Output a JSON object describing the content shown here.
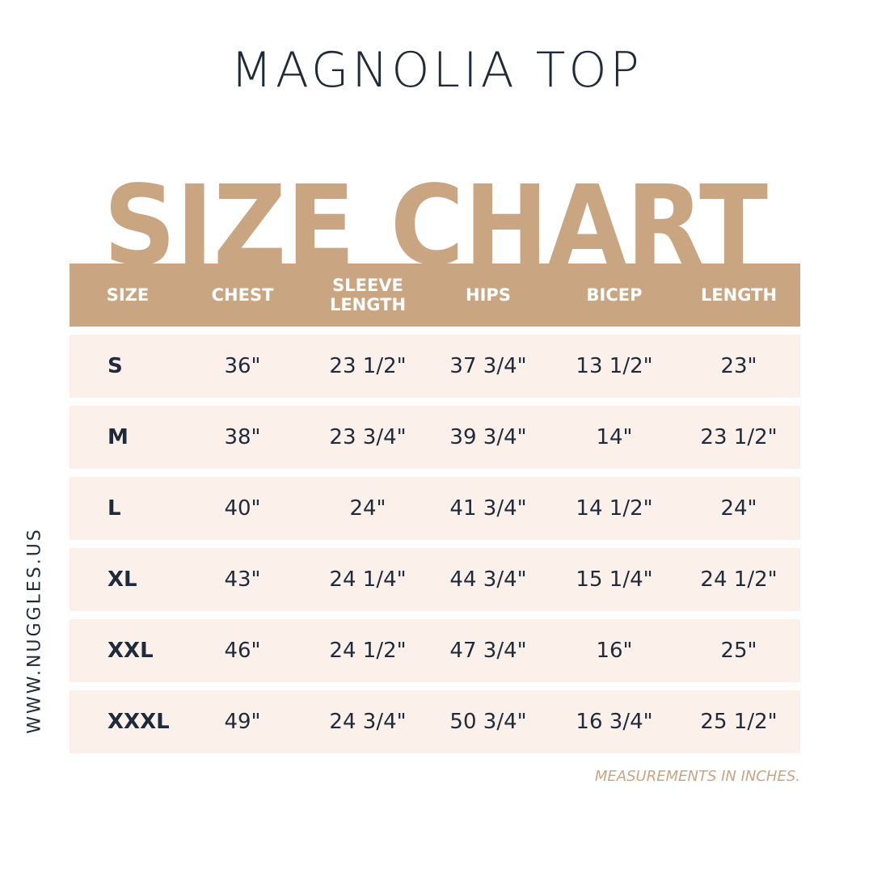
{
  "header": {
    "title": "MAGNOLIA TOP",
    "heading": "SIZE CHART"
  },
  "side_text": "WWW.NUGGLES.US",
  "table": {
    "columns": [
      "SIZE",
      "CHEST",
      "SLEEVE LENGTH",
      "HIPS",
      "BICEP",
      "LENGTH"
    ],
    "rows": [
      [
        "S",
        "36\"",
        "23 1/2\"",
        "37 3/4\"",
        "13 1/2\"",
        "23\""
      ],
      [
        "M",
        "38\"",
        "23 3/4\"",
        "39 3/4\"",
        "14\"",
        "23 1/2\""
      ],
      [
        "L",
        "40\"",
        "24\"",
        "41 3/4\"",
        "14 1/2\"",
        "24\""
      ],
      [
        "XL",
        "43\"",
        "24 1/4\"",
        "44 3/4\"",
        "15 1/4\"",
        "24 1/2\""
      ],
      [
        "XXL",
        "46\"",
        "24 1/2\"",
        "47 3/4\"",
        "16\"",
        "25\""
      ],
      [
        "XXXL",
        "49\"",
        "24 3/4\"",
        "50 3/4\"",
        "16 3/4\"",
        "25 1/2\""
      ]
    ]
  },
  "footnote": "MEASUREMENTS IN INCHES."
}
